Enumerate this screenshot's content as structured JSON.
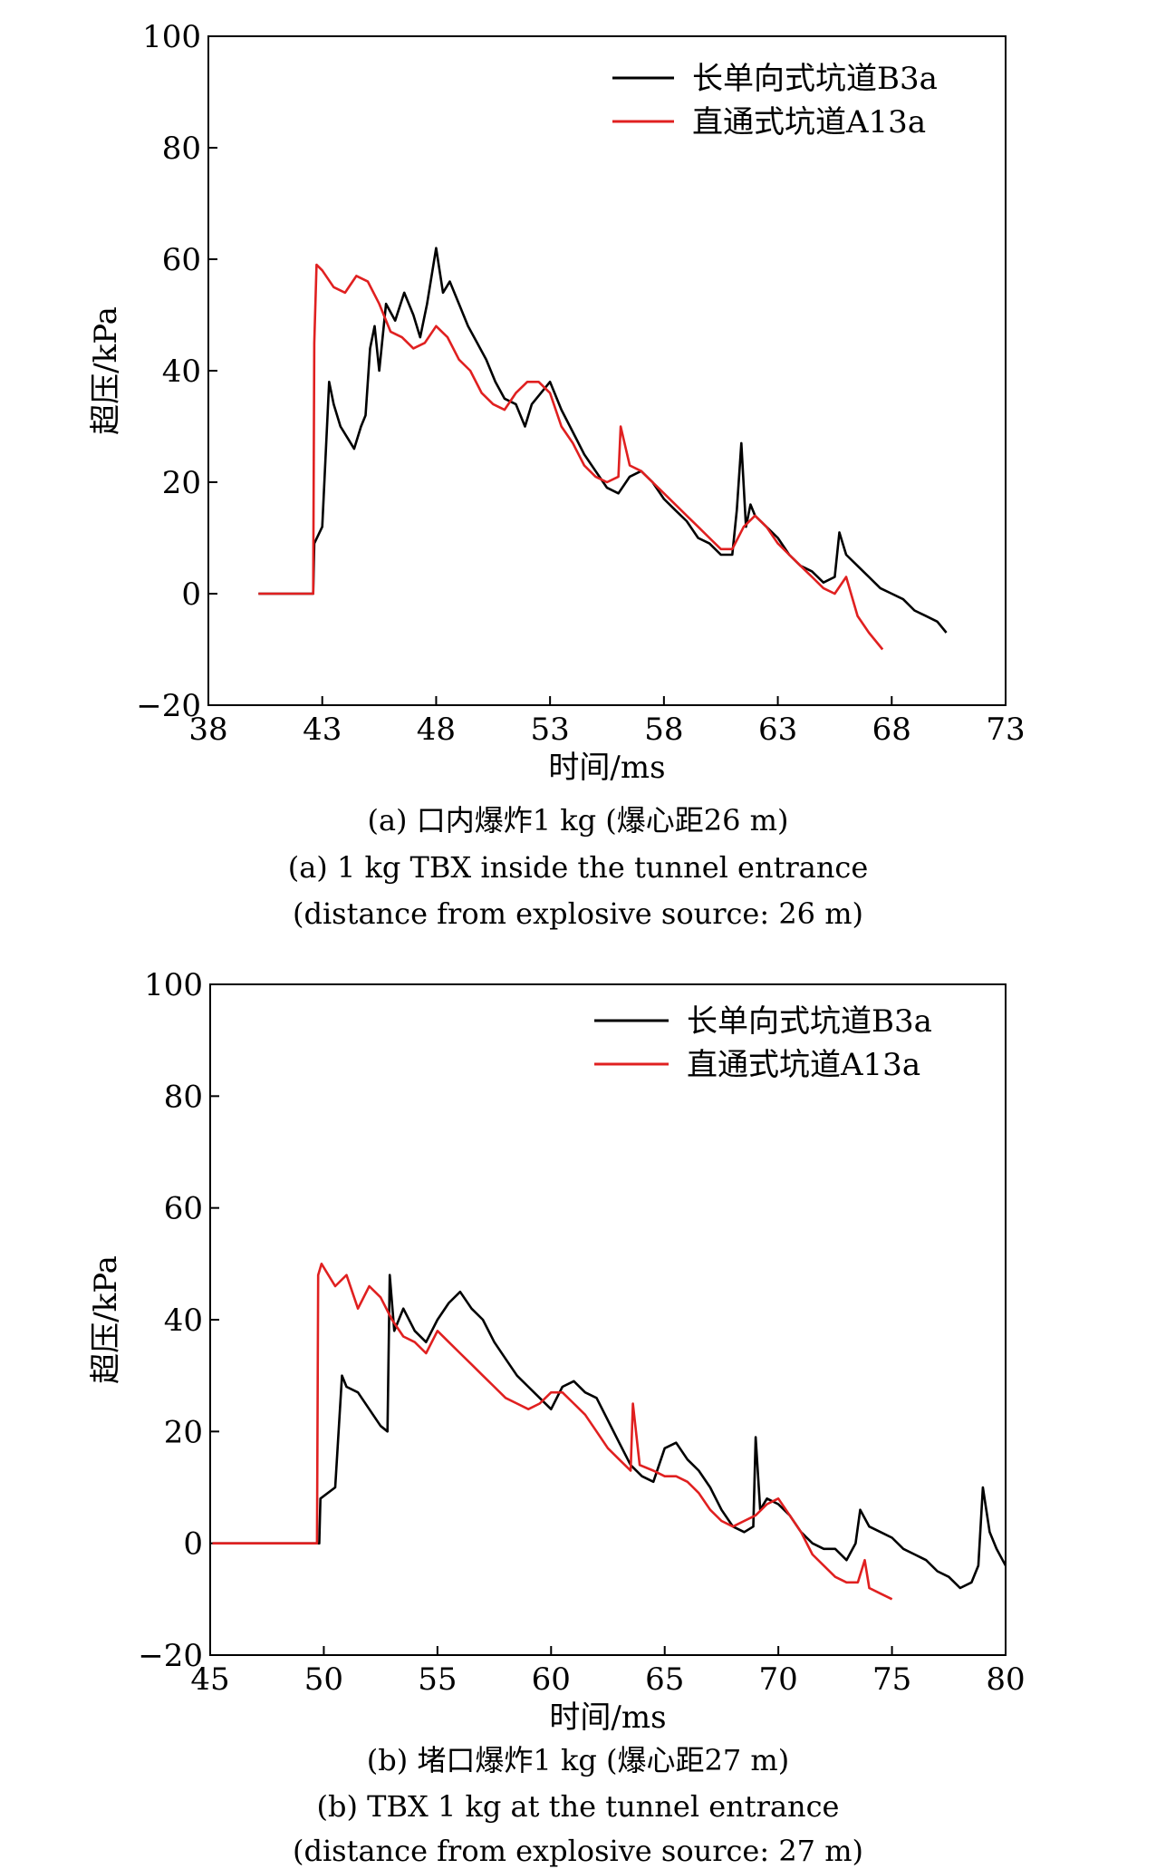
{
  "chart_data": [
    {
      "type": "line",
      "xlabel": "时间/ms",
      "ylabel": "超压/kPa",
      "xlim": [
        38,
        73
      ],
      "ylim": [
        -20,
        100
      ],
      "xticks": [
        38,
        43,
        48,
        53,
        58,
        63,
        68,
        73
      ],
      "yticks": [
        -20,
        0,
        20,
        40,
        60,
        80,
        100
      ],
      "legend_position": "top-right",
      "captions": [
        "(a) 口内爆炸1 kg (爆心距26 m)",
        "(a) 1 kg TBX inside the tunnel entrance",
        "(distance from explosive source: 26 m)"
      ],
      "series": [
        {
          "name": "长单向式坑道B3a",
          "color": "#000000",
          "x": [
            40.2,
            42.6,
            42.65,
            43.0,
            43.3,
            43.5,
            43.8,
            44.1,
            44.4,
            44.7,
            44.9,
            45.1,
            45.3,
            45.5,
            45.8,
            46.2,
            46.6,
            47.0,
            47.3,
            47.6,
            48.0,
            48.3,
            48.6,
            49.0,
            49.4,
            49.8,
            50.2,
            50.6,
            51.0,
            51.5,
            51.9,
            52.2,
            52.6,
            53.0,
            53.5,
            54.0,
            54.5,
            55.0,
            55.5,
            56.0,
            56.5,
            57.0,
            57.5,
            58.0,
            58.5,
            59.0,
            59.5,
            60.0,
            60.5,
            61.0,
            61.2,
            61.4,
            61.6,
            61.8,
            62.0,
            62.5,
            63.0,
            63.5,
            64.0,
            64.5,
            65.0,
            65.5,
            65.7,
            66.0,
            66.5,
            67.0,
            67.5,
            68.0,
            68.5,
            69.0,
            69.5,
            70.0,
            70.4
          ],
          "y": [
            0,
            0,
            9,
            12,
            38,
            34,
            30,
            28,
            26,
            30,
            32,
            44,
            48,
            40,
            52,
            49,
            54,
            50,
            46,
            52,
            62,
            54,
            56,
            52,
            48,
            45,
            42,
            38,
            35,
            34,
            30,
            34,
            36,
            38,
            33,
            29,
            25,
            22,
            19,
            18,
            21,
            22,
            20,
            17,
            15,
            13,
            10,
            9,
            7,
            7,
            15,
            27,
            12,
            16,
            14,
            12,
            10,
            7,
            5,
            4,
            2,
            3,
            11,
            7,
            5,
            3,
            1,
            0,
            -1,
            -3,
            -4,
            -5,
            -7
          ]
        },
        {
          "name": "直通式坑道A13a",
          "color": "#e02020",
          "x": [
            40.2,
            42.6,
            42.65,
            42.75,
            43.0,
            43.5,
            44.0,
            44.5,
            45.0,
            45.5,
            46.0,
            46.5,
            47.0,
            47.5,
            48.0,
            48.5,
            49.0,
            49.5,
            50.0,
            50.5,
            51.0,
            51.5,
            52.0,
            52.5,
            53.0,
            53.5,
            54.0,
            54.5,
            55.0,
            55.5,
            56.0,
            56.1,
            56.5,
            57.0,
            57.5,
            58.0,
            58.5,
            59.0,
            59.5,
            60.0,
            60.5,
            61.0,
            61.5,
            62.0,
            62.5,
            63.0,
            63.5,
            64.0,
            64.5,
            65.0,
            65.5,
            66.0,
            66.5,
            67.0,
            67.6
          ],
          "y": [
            0,
            0,
            45,
            59,
            58,
            55,
            54,
            57,
            56,
            52,
            47,
            46,
            44,
            45,
            48,
            46,
            42,
            40,
            36,
            34,
            33,
            36,
            38,
            38,
            36,
            30,
            27,
            23,
            21,
            20,
            21,
            30,
            23,
            22,
            20,
            18,
            16,
            14,
            12,
            10,
            8,
            8,
            12,
            14,
            12,
            9,
            7,
            5,
            3,
            1,
            0,
            3,
            -4,
            -7,
            -10
          ]
        }
      ]
    },
    {
      "type": "line",
      "xlabel": "时间/ms",
      "ylabel": "超压/kPa",
      "xlim": [
        45,
        80
      ],
      "ylim": [
        -20,
        100
      ],
      "xticks": [
        45,
        50,
        55,
        60,
        65,
        70,
        75,
        80
      ],
      "yticks": [
        -20,
        0,
        20,
        40,
        60,
        80,
        100
      ],
      "legend_position": "top-right",
      "captions": [
        "(b) 堵口爆炸1 kg (爆心距27 m)",
        "(b) TBX 1 kg at the tunnel entrance",
        "(distance from explosive source: 27 m)"
      ],
      "series": [
        {
          "name": "长单向式坑道B3a",
          "color": "#000000",
          "x": [
            45.1,
            49.8,
            49.85,
            50.5,
            50.8,
            51.0,
            51.5,
            52.0,
            52.5,
            52.8,
            52.9,
            53.1,
            53.5,
            54.0,
            54.5,
            55.0,
            55.5,
            56.0,
            56.5,
            57.0,
            57.5,
            58.0,
            58.5,
            59.0,
            59.5,
            60.0,
            60.5,
            61.0,
            61.5,
            62.0,
            62.5,
            63.0,
            63.5,
            64.0,
            64.5,
            65.0,
            65.5,
            66.0,
            66.5,
            67.0,
            67.5,
            68.0,
            68.5,
            68.9,
            69.0,
            69.2,
            69.5,
            70.0,
            70.5,
            71.0,
            71.5,
            72.0,
            72.5,
            73.0,
            73.4,
            73.6,
            74.0,
            74.5,
            75.0,
            75.5,
            76.0,
            76.5,
            77.0,
            77.5,
            78.0,
            78.5,
            78.8,
            79.0,
            79.3,
            79.6,
            80.0
          ],
          "y": [
            0,
            0,
            8,
            10,
            30,
            28,
            27,
            24,
            21,
            20,
            48,
            38,
            42,
            38,
            36,
            40,
            43,
            45,
            42,
            40,
            36,
            33,
            30,
            28,
            26,
            24,
            28,
            29,
            27,
            26,
            22,
            18,
            14,
            12,
            11,
            17,
            18,
            15,
            13,
            10,
            6,
            3,
            2,
            3,
            19,
            6,
            8,
            7,
            5,
            2,
            0,
            -1,
            -1,
            -3,
            0,
            6,
            3,
            2,
            1,
            -1,
            -2,
            -3,
            -5,
            -6,
            -8,
            -7,
            -4,
            10,
            2,
            -1,
            -4
          ]
        },
        {
          "name": "直通式坑道A13a",
          "color": "#e02020",
          "x": [
            45.1,
            49.7,
            49.75,
            49.9,
            50.5,
            51.0,
            51.5,
            52.0,
            52.5,
            53.0,
            53.5,
            54.0,
            54.5,
            55.0,
            55.5,
            56.0,
            56.5,
            57.0,
            57.5,
            58.0,
            58.5,
            59.0,
            59.5,
            60.0,
            60.5,
            61.0,
            61.5,
            62.0,
            62.5,
            63.0,
            63.5,
            63.6,
            63.9,
            64.5,
            65.0,
            65.5,
            66.0,
            66.5,
            67.0,
            67.5,
            68.0,
            68.5,
            69.0,
            69.5,
            70.0,
            70.5,
            71.0,
            71.5,
            72.0,
            72.5,
            73.0,
            73.5,
            73.8,
            74.0,
            74.5,
            75.0
          ],
          "y": [
            0,
            0,
            48,
            50,
            46,
            48,
            42,
            46,
            44,
            40,
            37,
            36,
            34,
            38,
            36,
            34,
            32,
            30,
            28,
            26,
            25,
            24,
            25,
            27,
            27,
            25,
            23,
            20,
            17,
            15,
            13,
            25,
            14,
            13,
            12,
            12,
            11,
            9,
            6,
            4,
            3,
            4,
            5,
            7,
            8,
            5,
            2,
            -2,
            -4,
            -6,
            -7,
            -7,
            -3,
            -8,
            -9,
            -10
          ]
        }
      ]
    }
  ]
}
